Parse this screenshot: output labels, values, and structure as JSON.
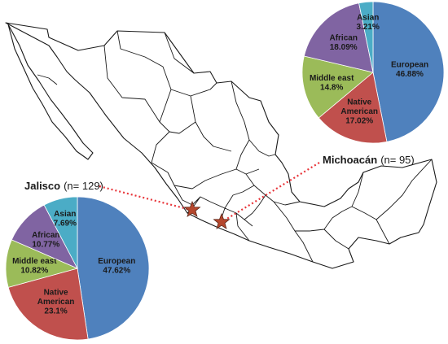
{
  "map": {
    "background": "#ffffff",
    "border_color": "#1a1a1a",
    "marker_color": "#b5472d",
    "marker_stroke": "#5a2416",
    "leader_color": "#e8353a"
  },
  "chart_data": [
    {
      "type": "pie",
      "state": "Michoacán",
      "sample_label": "(n= 95)",
      "categories": [
        "European",
        "Native American",
        "Middle east",
        "African",
        "Asian"
      ],
      "label_lines": [
        [
          "European",
          "46.88%"
        ],
        [
          "Native",
          "American",
          "17.02%"
        ],
        [
          "Middle east",
          "14.8%"
        ],
        [
          "African",
          "18.09%"
        ],
        [
          "Asian",
          "3.21%"
        ]
      ],
      "values": [
        46.88,
        17.02,
        14.8,
        18.09,
        3.21
      ],
      "colors": [
        "#4f81bd",
        "#c0504d",
        "#9bbb59",
        "#8064a2",
        "#4bacc6"
      ]
    },
    {
      "type": "pie",
      "state": "Jalisco",
      "sample_label": "(n= 129)",
      "categories": [
        "European",
        "Native American",
        "Middle east",
        "African",
        "Asian"
      ],
      "label_lines": [
        [
          "European",
          "47.62%"
        ],
        [
          "Native",
          "American",
          "23.1%"
        ],
        [
          "Middle east",
          "10.82%"
        ],
        [
          "African",
          "10.77%"
        ],
        [
          "Asian",
          "7.69%"
        ]
      ],
      "values": [
        47.62,
        23.1,
        10.82,
        10.77,
        7.69
      ],
      "colors": [
        "#4f81bd",
        "#c0504d",
        "#9bbb59",
        "#8064a2",
        "#4bacc6"
      ]
    }
  ]
}
